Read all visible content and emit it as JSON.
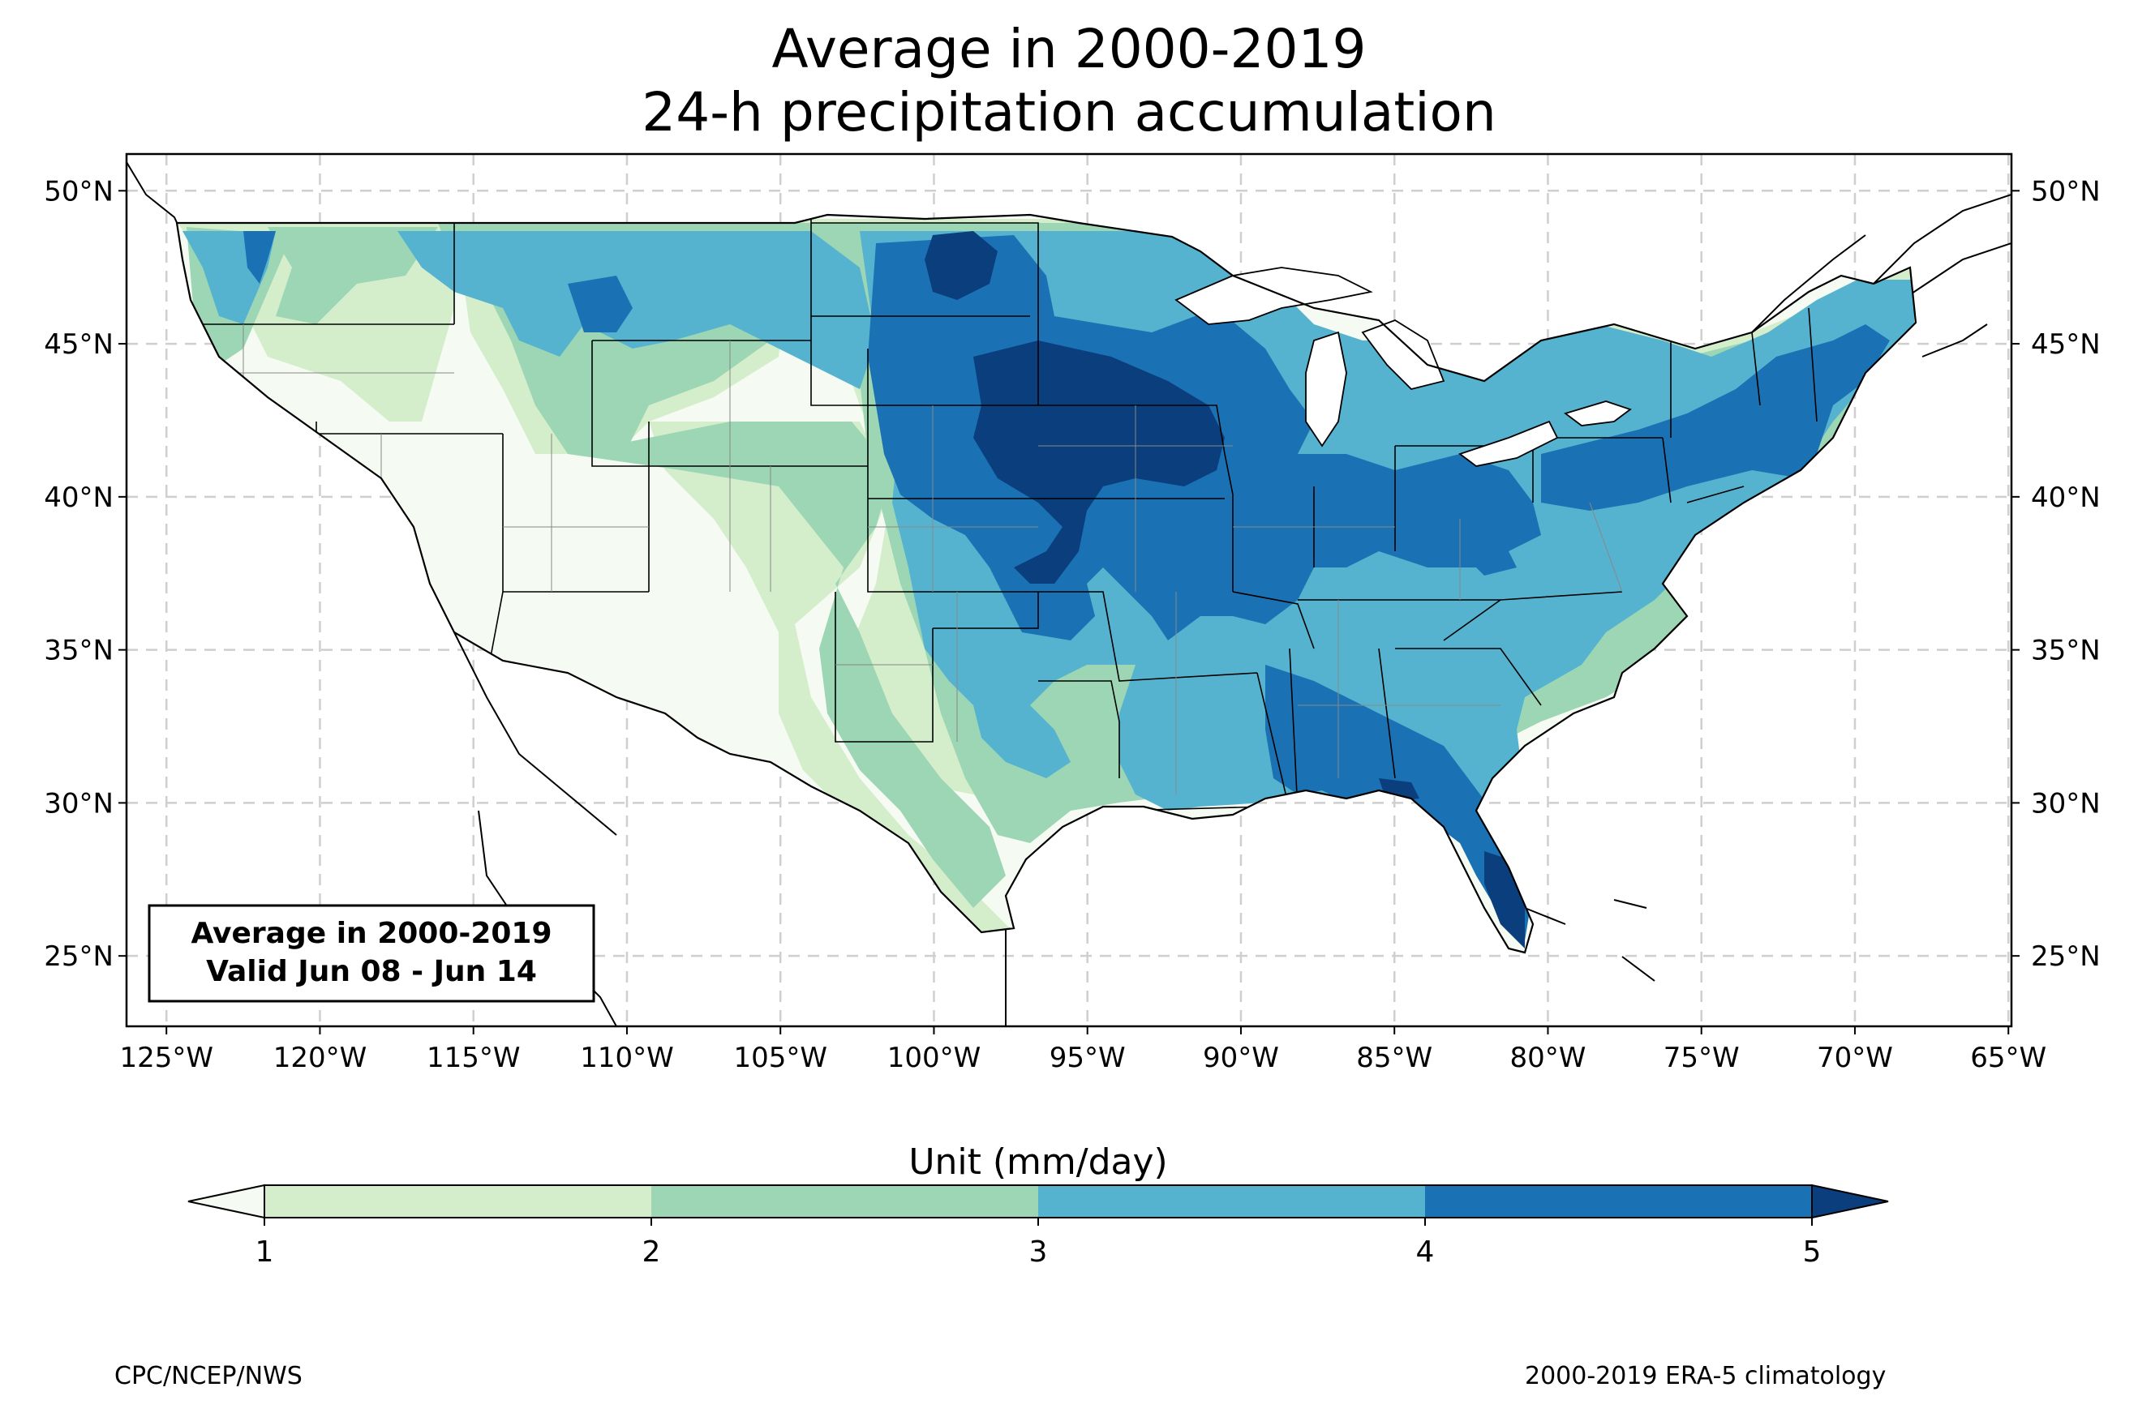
{
  "title": "Average in 2000-2019",
  "subtitle": "24-h precipitation accumulation",
  "map": {
    "lon_range": [
      -126.3,
      -64.9
    ],
    "lat_range": [
      22.7,
      51.2
    ],
    "lon_ticks": [
      -125,
      -120,
      -115,
      -110,
      -105,
      -100,
      -95,
      -90,
      -85,
      -80,
      -75,
      -70,
      -65
    ],
    "lon_tick_labels": [
      "125°W",
      "120°W",
      "115°W",
      "110°W",
      "105°W",
      "100°W",
      "95°W",
      "90°W",
      "85°W",
      "80°W",
      "75°W",
      "70°W",
      "65°W"
    ],
    "lat_ticks": [
      25,
      30,
      35,
      40,
      45,
      50
    ],
    "lat_tick_labels": [
      "25°N",
      "30°N",
      "35°N",
      "40°N",
      "45°N",
      "50°N"
    ],
    "grid": true
  },
  "annotation": {
    "line1": "Average in 2000-2019",
    "line2": "Valid Jun 08 - Jun 14"
  },
  "colorbar": {
    "label": "Unit (mm/day)",
    "ticks": [
      "1",
      "2",
      "3",
      "4",
      "5"
    ],
    "colors": [
      "#d4eecb",
      "#9dd6b5",
      "#56b3cf",
      "#1a72b4",
      "#0a3e7d"
    ],
    "extend": "both"
  },
  "footer": {
    "left": "CPC/NCEP/NWS",
    "right": "2000-2019 ERA-5 climatology"
  }
}
